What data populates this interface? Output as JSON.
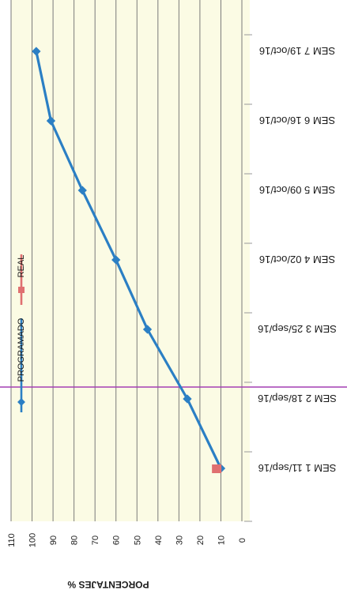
{
  "chart_data": {
    "type": "line",
    "orientation": "rotated-180",
    "ylabel": "PORCENTAJES %",
    "ylim": [
      0,
      110
    ],
    "y_ticks": [
      "0",
      "10",
      "20",
      "30",
      "40",
      "50",
      "60",
      "70",
      "80",
      "90",
      "100",
      "110"
    ],
    "categories": [
      "SEM 1   11/sep/16",
      "SEM 2   18/sep/16",
      "SEM 3   25/sep/16",
      "SEM 4   02/oct/16",
      "SEM 5   09/oct/16",
      "SEM 6   16/oct/16",
      "SEM 7   19/oct/16"
    ],
    "series": [
      {
        "name": "PROGRAMADO",
        "color": "#2b7fc4",
        "marker": "diamond",
        "values": [
          10,
          26,
          45,
          60,
          76,
          91,
          98
        ]
      },
      {
        "name": "REAL",
        "color": "#e07070",
        "marker": "square",
        "values": [
          12,
          null,
          null,
          null,
          null,
          null,
          null
        ]
      }
    ],
    "grid": true,
    "legend": "left",
    "colors": {
      "plot_bg": "#fbfbe4",
      "grid": "#7a7a7a",
      "divider": "#a43fb3"
    }
  }
}
